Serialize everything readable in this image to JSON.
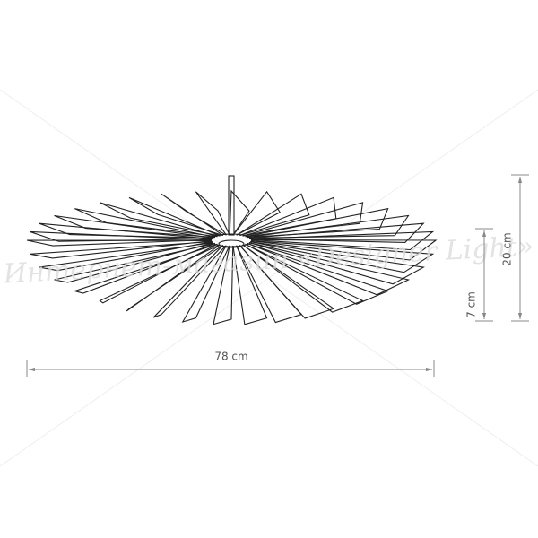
{
  "dimensions": {
    "width": "78 cm",
    "height_shade": "7 cm",
    "height_total": "20 cm"
  },
  "watermark": "Интернет-магазин «Designer Light»"
}
